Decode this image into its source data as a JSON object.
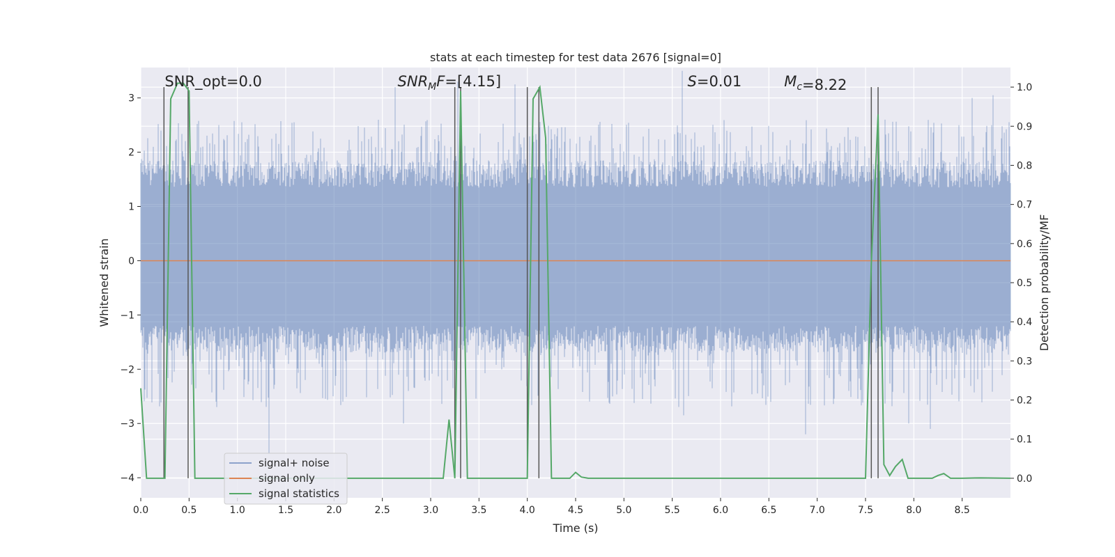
{
  "chart_data": {
    "type": "line",
    "title": "stats at each timestep for test data 2676 [signal=0]",
    "xlabel": "Time (s)",
    "ylabel_left": "Whitened strain",
    "ylabel_right": "Detection probability/MF",
    "xlim": [
      0.0,
      9.0
    ],
    "ylim_left": [
      -4.37,
      3.56
    ],
    "ylim_right": [
      -0.05,
      1.05
    ],
    "x_ticks": [
      0.0,
      0.5,
      1.0,
      1.5,
      2.0,
      2.5,
      3.0,
      3.5,
      4.0,
      4.5,
      5.0,
      5.5,
      6.0,
      6.5,
      7.0,
      7.5,
      8.0,
      8.5
    ],
    "x_tick_labels": [
      "0.0",
      "0.5",
      "1.0",
      "1.5",
      "2.0",
      "2.5",
      "3.0",
      "3.5",
      "4.0",
      "4.5",
      "5.0",
      "5.5",
      "6.0",
      "6.5",
      "7.0",
      "7.5",
      "8.0",
      "8.5"
    ],
    "y_left_ticks": [
      -4,
      -3,
      -2,
      -1,
      0,
      1,
      2,
      3
    ],
    "y_left_tick_labels": [
      "−4",
      "−3",
      "−2",
      "−1",
      "0",
      "1",
      "2",
      "3"
    ],
    "y_right_ticks": [
      0.0,
      0.1,
      0.2,
      0.3,
      0.4,
      0.5,
      0.6,
      0.7,
      0.8,
      0.9,
      1.0
    ],
    "y_right_tick_labels": [
      "0.0",
      "0.1",
      "0.2",
      "0.3",
      "0.4",
      "0.5",
      "0.6",
      "0.7",
      "0.8",
      "0.9",
      "1.0"
    ],
    "grid": true,
    "annotations": [
      {
        "text": "SNR_opt=0.0",
        "math": false,
        "x": 0.19
      },
      {
        "text_math": "SNR",
        "sub": "M",
        "rest_math": "F",
        "value": "=[4.15]",
        "math": true,
        "x": 2.6
      },
      {
        "text_math": "S",
        "sub": "",
        "rest_math": "",
        "value": "=0.01",
        "math": true,
        "x": 5.6
      },
      {
        "text_math": "M",
        "sub": "c",
        "rest_math": "",
        "value": "=8.22",
        "math": true,
        "x": 6.6
      }
    ],
    "vertical_markers_x": [
      0.24,
      0.49,
      3.25,
      3.31,
      4.0,
      4.12,
      7.56,
      7.63
    ],
    "series": [
      {
        "name": "signal+ noise",
        "color": "#4c72b0",
        "axis": "left",
        "style": "dense-noise",
        "envelope": {
          "core_low": -1.7,
          "core_high": 1.85,
          "spike_low": -3.6,
          "spike_high": 3.5
        },
        "notable_spikes": [
          {
            "x": 1.33,
            "y": -3.55
          },
          {
            "x": 2.63,
            "y": 3.2
          },
          {
            "x": 2.72,
            "y": -3.0
          },
          {
            "x": 3.28,
            "y": 3.3
          },
          {
            "x": 3.87,
            "y": 3.25
          },
          {
            "x": 5.6,
            "y": 3.5
          },
          {
            "x": 5.62,
            "y": -2.85
          },
          {
            "x": 6.88,
            "y": -3.2
          },
          {
            "x": 7.95,
            "y": -3.0
          },
          {
            "x": 8.17,
            "y": -3.1
          },
          {
            "x": 8.6,
            "y": 3.0
          },
          {
            "x": 8.82,
            "y": 3.05
          }
        ]
      },
      {
        "name": "signal only",
        "color": "#dd8452",
        "axis": "left",
        "x": [
          0.0,
          9.0
        ],
        "y": [
          0.0,
          0.0
        ]
      },
      {
        "name": "signal statistics",
        "color": "#55a868",
        "axis": "right",
        "x": [
          0.0,
          0.06,
          0.13,
          0.19,
          0.25,
          0.31,
          0.38,
          0.44,
          0.5,
          0.56,
          0.63,
          3.13,
          3.19,
          3.25,
          3.31,
          3.38,
          3.44,
          4.0,
          4.06,
          4.13,
          4.19,
          4.25,
          4.31,
          4.44,
          4.5,
          4.56,
          4.63,
          7.5,
          7.56,
          7.63,
          7.69,
          7.75,
          7.81,
          7.88,
          7.94,
          8.0,
          8.19,
          8.25,
          8.31,
          8.38,
          8.5,
          8.69,
          9.0
        ],
        "y": [
          0.23,
          0.0,
          0.0,
          0.0,
          0.0,
          0.97,
          1.01,
          1.01,
          0.99,
          0.0,
          0.0,
          0.0,
          0.15,
          0.0,
          0.99,
          0.0,
          0.0,
          0.0,
          0.97,
          1.0,
          0.87,
          0.0,
          0.0,
          0.0,
          0.015,
          0.003,
          0.0,
          0.0,
          0.55,
          0.93,
          0.035,
          0.007,
          0.03,
          0.048,
          0.0,
          0.0,
          0.0,
          0.007,
          0.012,
          0.0,
          0.0,
          0.001,
          0.0
        ]
      }
    ],
    "legend": {
      "position": "lower-left",
      "entries": [
        "signal+ noise",
        "signal only",
        "signal statistics"
      ]
    }
  }
}
